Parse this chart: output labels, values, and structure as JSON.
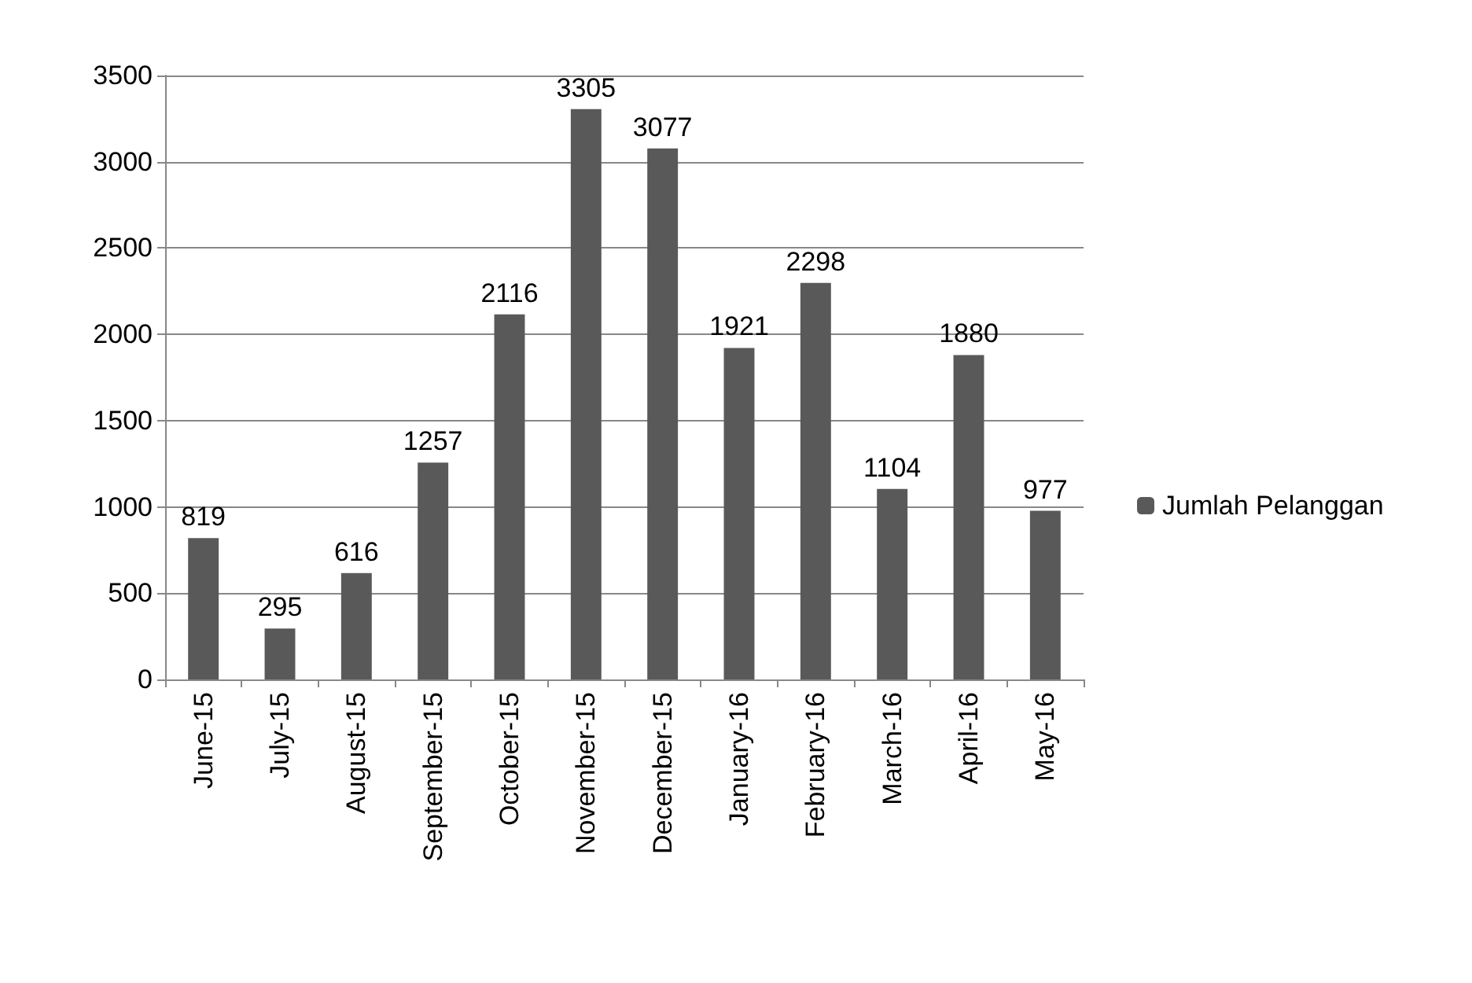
{
  "chart_data": {
    "type": "bar",
    "categories": [
      "June-15",
      "July-15",
      "August-15",
      "September-15",
      "October-15",
      "November-15",
      "December-15",
      "January-16",
      "February-16",
      "March-16",
      "April-16",
      "May-16"
    ],
    "series": [
      {
        "name": "Jumlah Pelanggan",
        "color": "#595959",
        "values": [
          819,
          295,
          616,
          1257,
          2116,
          3305,
          3077,
          1921,
          2298,
          1104,
          1880,
          977
        ]
      }
    ],
    "ylim": [
      0,
      3500
    ],
    "yticks": [
      0,
      500,
      1000,
      1500,
      2000,
      2500,
      3000,
      3500
    ],
    "grid": "y",
    "legend": "right",
    "data_labels": true
  }
}
